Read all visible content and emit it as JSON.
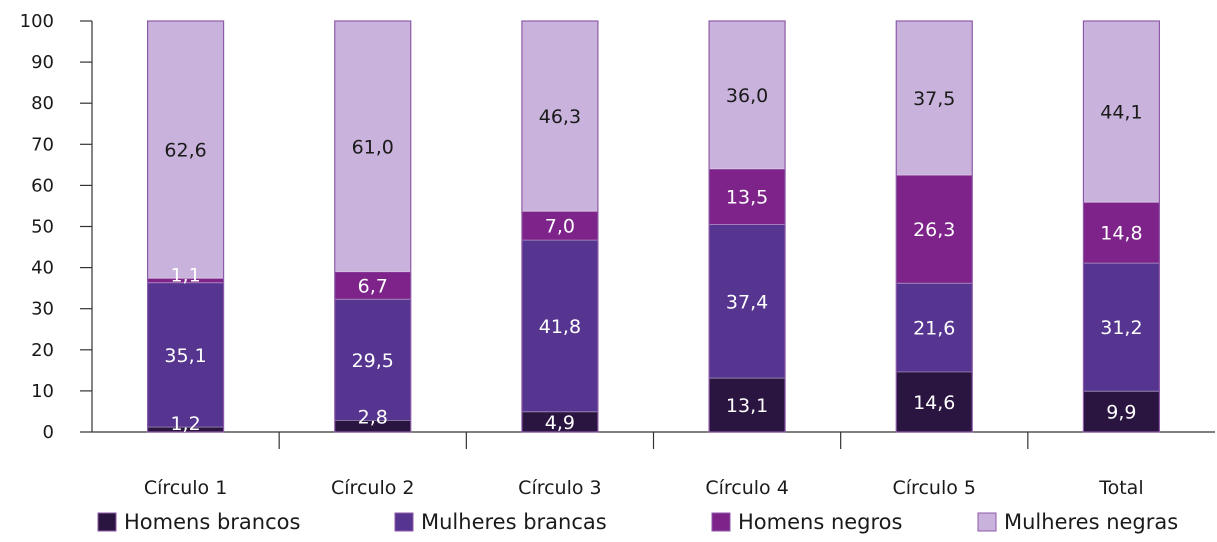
{
  "chart_data": {
    "type": "bar",
    "stacked": true,
    "categories": [
      "Círculo 1",
      "Círculo 2",
      "Círculo 3",
      "Círculo 4",
      "Círculo 5",
      "Total"
    ],
    "series": [
      {
        "name": "Homens brancos",
        "color": "#2a1440",
        "label_color": "#ffffff",
        "values": [
          1.2,
          2.8,
          4.9,
          13.1,
          14.6,
          9.9
        ]
      },
      {
        "name": "Mulheres brancas",
        "color": "#563590",
        "label_color": "#ffffff",
        "values": [
          35.1,
          29.5,
          41.8,
          37.4,
          21.6,
          31.2
        ]
      },
      {
        "name": "Homens negros",
        "color": "#7d2389",
        "label_color": "#ffffff",
        "values": [
          1.1,
          6.7,
          7.0,
          13.5,
          26.3,
          14.8
        ]
      },
      {
        "name": "Mulheres negras",
        "color": "#c9b3dc",
        "label_color": "#1a1a1a",
        "values": [
          62.6,
          61.0,
          46.3,
          36.0,
          37.5,
          44.1
        ]
      }
    ],
    "value_labels": [
      [
        "1,2",
        "2,8",
        "4,9",
        "13,1",
        "14,6",
        "9,9"
      ],
      [
        "35,1",
        "29,5",
        "41,8",
        "37,4",
        "21,6",
        "31,2"
      ],
      [
        "1,1",
        "6,7",
        "7,0",
        "13,5",
        "26,3",
        "14,8"
      ],
      [
        "62,6",
        "61,0",
        "46,3",
        "36,0",
        "37,5",
        "44,1"
      ]
    ],
    "yticks": [
      0,
      10,
      20,
      30,
      40,
      50,
      60,
      70,
      80,
      90,
      100
    ],
    "ylim": [
      0,
      100
    ],
    "title": "",
    "xlabel": "",
    "ylabel": "",
    "grid": false,
    "legend_position": "bottom",
    "bar_outline_color": "#8e5aa8"
  }
}
